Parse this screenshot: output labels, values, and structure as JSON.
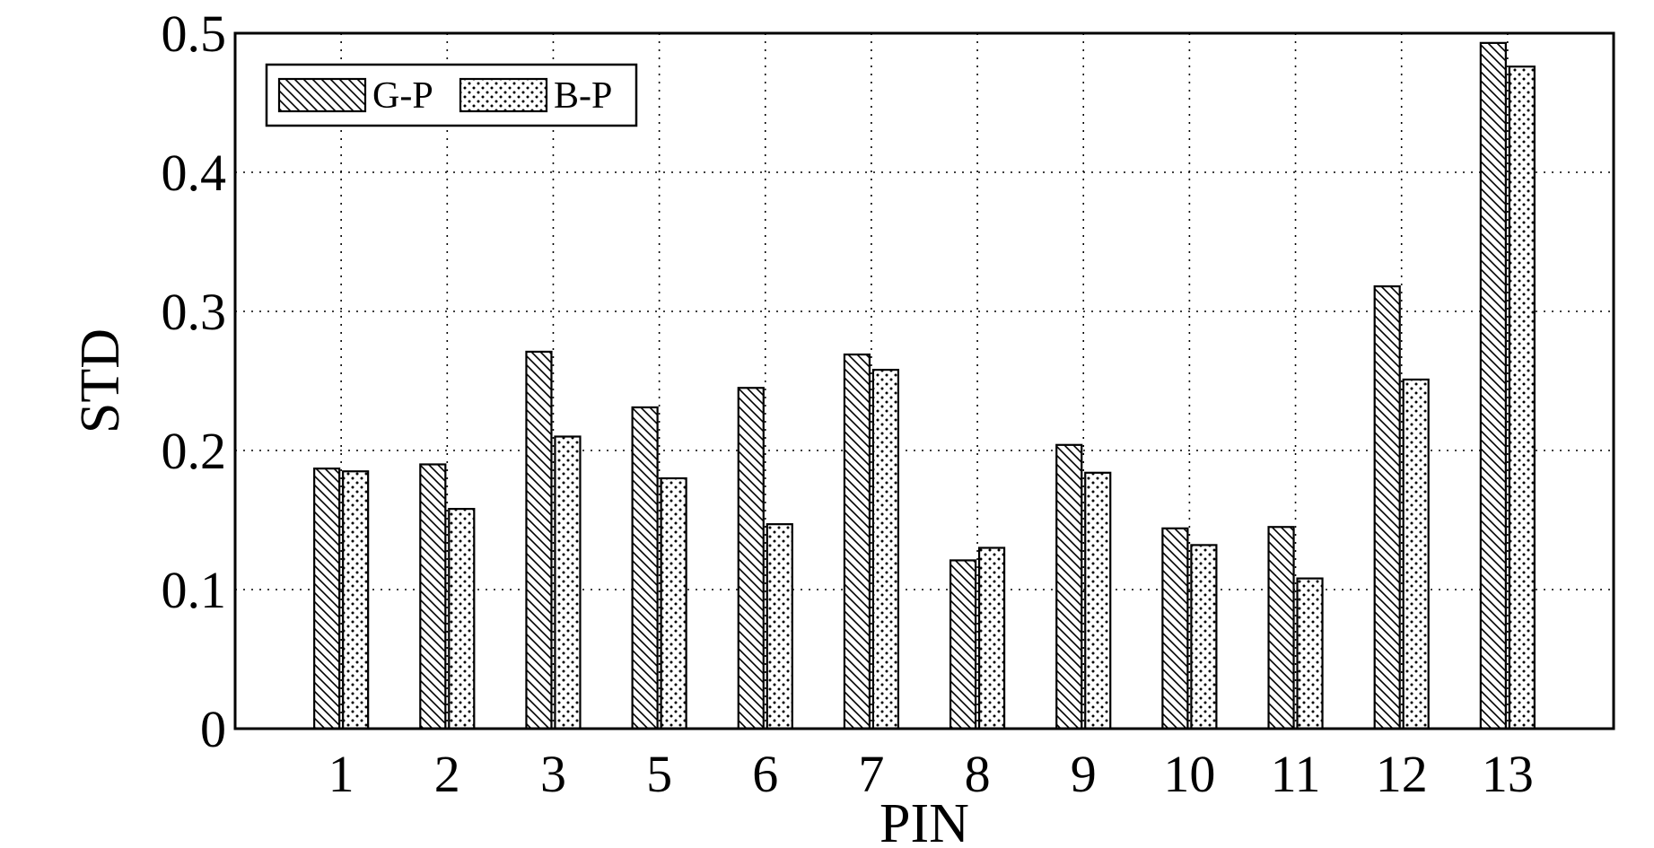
{
  "chart_data": {
    "type": "bar",
    "title": "",
    "xlabel": "PIN",
    "ylabel": "STD",
    "categories": [
      "1",
      "2",
      "3",
      "5",
      "6",
      "7",
      "8",
      "9",
      "10",
      "11",
      "12",
      "13"
    ],
    "series": [
      {
        "name": "G-P",
        "pattern": "diagonal-hatch",
        "values": [
          0.187,
          0.19,
          0.271,
          0.231,
          0.245,
          0.269,
          0.121,
          0.204,
          0.144,
          0.145,
          0.318,
          0.493
        ]
      },
      {
        "name": "B-P",
        "pattern": "dots",
        "values": [
          0.185,
          0.158,
          0.21,
          0.18,
          0.147,
          0.258,
          0.13,
          0.184,
          0.132,
          0.108,
          0.251,
          0.476
        ]
      }
    ],
    "ylim": [
      0,
      0.5
    ],
    "yticks": [
      "0",
      "0.1",
      "0.2",
      "0.3",
      "0.4",
      "0.5"
    ],
    "grid": true,
    "grid_style": "dotted",
    "legend_position": "top-left",
    "colors": {
      "bar_stroke": "#000000",
      "bar_fill": "#ffffff",
      "grid": "#000000",
      "axis": "#000000"
    }
  }
}
